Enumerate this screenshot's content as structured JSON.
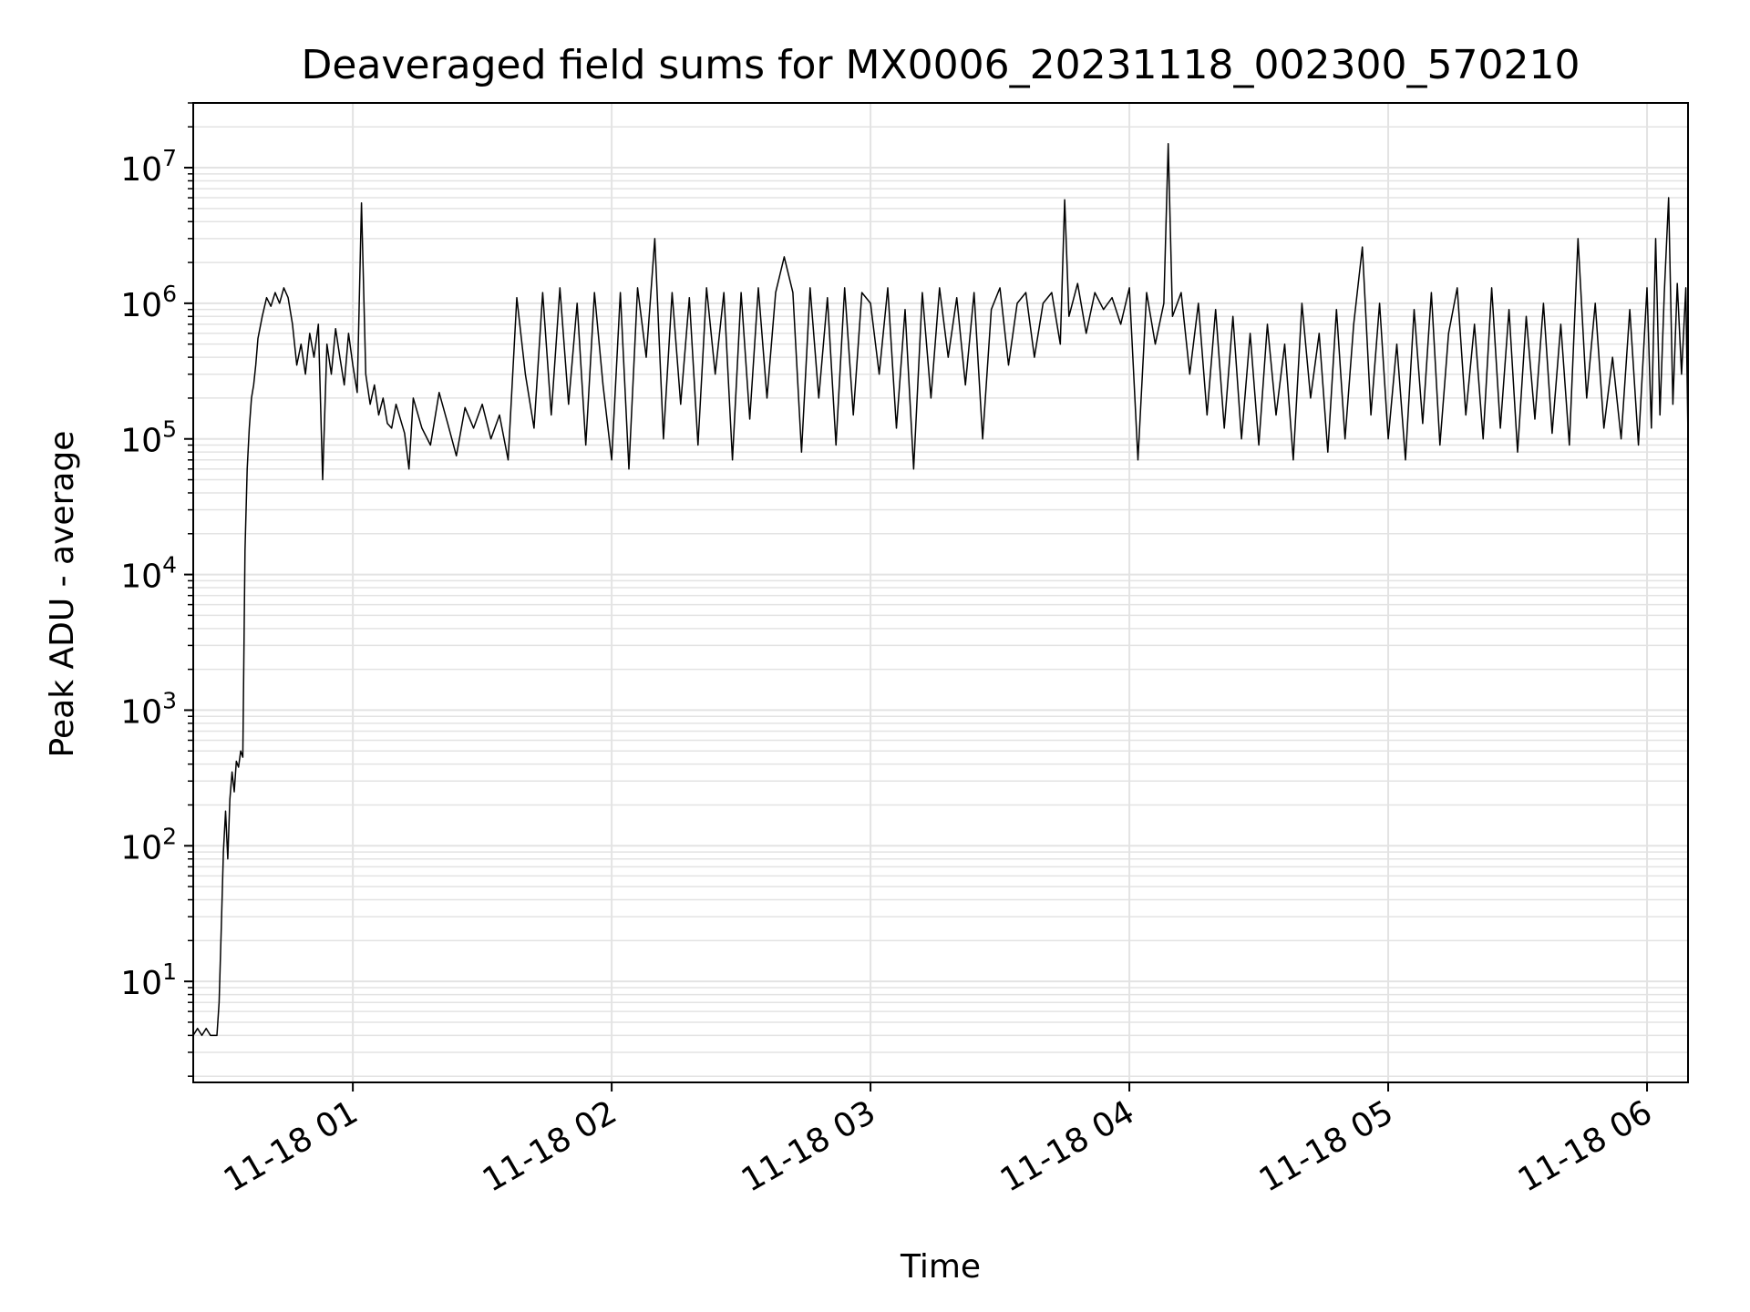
{
  "chart_data": {
    "type": "line",
    "title": "Deaveraged field sums for MX0006_20231118_002300_570210",
    "xlabel": "Time",
    "ylabel": "Peak ADU - average",
    "y_scale": "log",
    "ylim": [
      1.8,
      30000000
    ],
    "xlim": [
      "2023-11-18 00:23:00",
      "2023-11-18 06:09:30"
    ],
    "grid": true,
    "line_color": "#000000",
    "grid_color": "#e3e3e3",
    "x_ticks": [
      "11-18 01",
      "11-18 02",
      "11-18 03",
      "11-18 04",
      "11-18 05",
      "11-18 06"
    ],
    "y_ticks": [
      {
        "base": "10",
        "exp": "1",
        "value": 10
      },
      {
        "base": "10",
        "exp": "2",
        "value": 100
      },
      {
        "base": "10",
        "exp": "3",
        "value": 1000
      },
      {
        "base": "10",
        "exp": "4",
        "value": 10000
      },
      {
        "base": "10",
        "exp": "5",
        "value": 100000
      },
      {
        "base": "10",
        "exp": "6",
        "value": 1000000
      },
      {
        "base": "10",
        "exp": "7",
        "value": 10000000
      }
    ],
    "series": [
      {
        "points": [
          [
            "2023-11-18 00:23:00",
            4
          ],
          [
            "2023-11-18 00:24:00",
            4.5
          ],
          [
            "2023-11-18 00:25:00",
            4
          ],
          [
            "2023-11-18 00:26:00",
            4.5
          ],
          [
            "2023-11-18 00:27:00",
            4
          ],
          [
            "2023-11-18 00:28:30",
            4
          ],
          [
            "2023-11-18 00:29:00",
            7
          ],
          [
            "2023-11-18 00:29:30",
            25
          ],
          [
            "2023-11-18 00:30:00",
            90
          ],
          [
            "2023-11-18 00:30:30",
            180
          ],
          [
            "2023-11-18 00:31:00",
            80
          ],
          [
            "2023-11-18 00:31:30",
            220
          ],
          [
            "2023-11-18 00:32:00",
            350
          ],
          [
            "2023-11-18 00:32:30",
            250
          ],
          [
            "2023-11-18 00:33:00",
            420
          ],
          [
            "2023-11-18 00:33:30",
            380
          ],
          [
            "2023-11-18 00:34:00",
            500
          ],
          [
            "2023-11-18 00:34:30",
            450
          ],
          [
            "2023-11-18 00:35:00",
            15000
          ],
          [
            "2023-11-18 00:35:30",
            60000
          ],
          [
            "2023-11-18 00:36:00",
            120000
          ],
          [
            "2023-11-18 00:36:30",
            200000
          ],
          [
            "2023-11-18 00:37:00",
            250000
          ],
          [
            "2023-11-18 00:37:30",
            350000
          ],
          [
            "2023-11-18 00:38:00",
            550000
          ],
          [
            "2023-11-18 00:39:00",
            800000
          ],
          [
            "2023-11-18 00:40:00",
            1100000
          ],
          [
            "2023-11-18 00:41:00",
            950000
          ],
          [
            "2023-11-18 00:42:00",
            1200000
          ],
          [
            "2023-11-18 00:43:00",
            1000000
          ],
          [
            "2023-11-18 00:44:00",
            1300000
          ],
          [
            "2023-11-18 00:45:00",
            1100000
          ],
          [
            "2023-11-18 00:46:00",
            700000
          ],
          [
            "2023-11-18 00:47:00",
            350000
          ],
          [
            "2023-11-18 00:48:00",
            500000
          ],
          [
            "2023-11-18 00:49:00",
            300000
          ],
          [
            "2023-11-18 00:50:00",
            600000
          ],
          [
            "2023-11-18 00:51:00",
            400000
          ],
          [
            "2023-11-18 00:52:00",
            700000
          ],
          [
            "2023-11-18 00:53:00",
            50000
          ],
          [
            "2023-11-18 00:54:00",
            500000
          ],
          [
            "2023-11-18 00:55:00",
            300000
          ],
          [
            "2023-11-18 00:56:00",
            650000
          ],
          [
            "2023-11-18 00:57:00",
            400000
          ],
          [
            "2023-11-18 00:58:00",
            250000
          ],
          [
            "2023-11-18 00:59:00",
            600000
          ],
          [
            "2023-11-18 01:00:00",
            350000
          ],
          [
            "2023-11-18 01:01:00",
            220000
          ],
          [
            "2023-11-18 01:02:00",
            5500000
          ],
          [
            "2023-11-18 01:03:00",
            300000
          ],
          [
            "2023-11-18 01:04:00",
            180000
          ],
          [
            "2023-11-18 01:05:00",
            250000
          ],
          [
            "2023-11-18 01:06:00",
            150000
          ],
          [
            "2023-11-18 01:07:00",
            200000
          ],
          [
            "2023-11-18 01:08:00",
            130000
          ],
          [
            "2023-11-18 01:09:00",
            120000
          ],
          [
            "2023-11-18 01:10:00",
            180000
          ],
          [
            "2023-11-18 01:12:00",
            110000
          ],
          [
            "2023-11-18 01:13:00",
            60000
          ],
          [
            "2023-11-18 01:14:00",
            200000
          ],
          [
            "2023-11-18 01:16:00",
            120000
          ],
          [
            "2023-11-18 01:18:00",
            90000
          ],
          [
            "2023-11-18 01:20:00",
            220000
          ],
          [
            "2023-11-18 01:22:00",
            130000
          ],
          [
            "2023-11-18 01:24:00",
            75000
          ],
          [
            "2023-11-18 01:26:00",
            170000
          ],
          [
            "2023-11-18 01:28:00",
            120000
          ],
          [
            "2023-11-18 01:30:00",
            180000
          ],
          [
            "2023-11-18 01:32:00",
            100000
          ],
          [
            "2023-11-18 01:34:00",
            150000
          ],
          [
            "2023-11-18 01:36:00",
            70000
          ],
          [
            "2023-11-18 01:38:00",
            1100000
          ],
          [
            "2023-11-18 01:40:00",
            300000
          ],
          [
            "2023-11-18 01:42:00",
            120000
          ],
          [
            "2023-11-18 01:44:00",
            1200000
          ],
          [
            "2023-11-18 01:46:00",
            150000
          ],
          [
            "2023-11-18 01:48:00",
            1300000
          ],
          [
            "2023-11-18 01:50:00",
            180000
          ],
          [
            "2023-11-18 01:52:00",
            1000000
          ],
          [
            "2023-11-18 01:54:00",
            90000
          ],
          [
            "2023-11-18 01:56:00",
            1200000
          ],
          [
            "2023-11-18 01:58:00",
            250000
          ],
          [
            "2023-11-18 02:00:00",
            70000
          ],
          [
            "2023-11-18 02:02:00",
            1200000
          ],
          [
            "2023-11-18 02:04:00",
            60000
          ],
          [
            "2023-11-18 02:06:00",
            1300000
          ],
          [
            "2023-11-18 02:08:00",
            400000
          ],
          [
            "2023-11-18 02:10:00",
            3000000
          ],
          [
            "2023-11-18 02:12:00",
            100000
          ],
          [
            "2023-11-18 02:14:00",
            1200000
          ],
          [
            "2023-11-18 02:16:00",
            180000
          ],
          [
            "2023-11-18 02:18:00",
            1100000
          ],
          [
            "2023-11-18 02:20:00",
            90000
          ],
          [
            "2023-11-18 02:22:00",
            1300000
          ],
          [
            "2023-11-18 02:24:00",
            300000
          ],
          [
            "2023-11-18 02:26:00",
            1200000
          ],
          [
            "2023-11-18 02:28:00",
            70000
          ],
          [
            "2023-11-18 02:30:00",
            1200000
          ],
          [
            "2023-11-18 02:32:00",
            140000
          ],
          [
            "2023-11-18 02:34:00",
            1300000
          ],
          [
            "2023-11-18 02:36:00",
            200000
          ],
          [
            "2023-11-18 02:38:00",
            1200000
          ],
          [
            "2023-11-18 02:40:00",
            2200000
          ],
          [
            "2023-11-18 02:42:00",
            1200000
          ],
          [
            "2023-11-18 02:44:00",
            80000
          ],
          [
            "2023-11-18 02:46:00",
            1300000
          ],
          [
            "2023-11-18 02:48:00",
            200000
          ],
          [
            "2023-11-18 02:50:00",
            1100000
          ],
          [
            "2023-11-18 02:52:00",
            90000
          ],
          [
            "2023-11-18 02:54:00",
            1300000
          ],
          [
            "2023-11-18 02:56:00",
            150000
          ],
          [
            "2023-11-18 02:58:00",
            1200000
          ],
          [
            "2023-11-18 03:00:00",
            1000000
          ],
          [
            "2023-11-18 03:02:00",
            300000
          ],
          [
            "2023-11-18 03:04:00",
            1300000
          ],
          [
            "2023-11-18 03:06:00",
            120000
          ],
          [
            "2023-11-18 03:08:00",
            900000
          ],
          [
            "2023-11-18 03:10:00",
            60000
          ],
          [
            "2023-11-18 03:12:00",
            1200000
          ],
          [
            "2023-11-18 03:14:00",
            200000
          ],
          [
            "2023-11-18 03:16:00",
            1300000
          ],
          [
            "2023-11-18 03:18:00",
            400000
          ],
          [
            "2023-11-18 03:20:00",
            1100000
          ],
          [
            "2023-11-18 03:22:00",
            250000
          ],
          [
            "2023-11-18 03:24:00",
            1200000
          ],
          [
            "2023-11-18 03:26:00",
            100000
          ],
          [
            "2023-11-18 03:28:00",
            900000
          ],
          [
            "2023-11-18 03:30:00",
            1300000
          ],
          [
            "2023-11-18 03:32:00",
            350000
          ],
          [
            "2023-11-18 03:34:00",
            1000000
          ],
          [
            "2023-11-18 03:36:00",
            1200000
          ],
          [
            "2023-11-18 03:38:00",
            400000
          ],
          [
            "2023-11-18 03:40:00",
            1000000
          ],
          [
            "2023-11-18 03:42:00",
            1200000
          ],
          [
            "2023-11-18 03:44:00",
            500000
          ],
          [
            "2023-11-18 03:45:00",
            5800000
          ],
          [
            "2023-11-18 03:46:00",
            800000
          ],
          [
            "2023-11-18 03:48:00",
            1400000
          ],
          [
            "2023-11-18 03:50:00",
            600000
          ],
          [
            "2023-11-18 03:52:00",
            1200000
          ],
          [
            "2023-11-18 03:54:00",
            900000
          ],
          [
            "2023-11-18 03:56:00",
            1100000
          ],
          [
            "2023-11-18 03:58:00",
            700000
          ],
          [
            "2023-11-18 04:00:00",
            1300000
          ],
          [
            "2023-11-18 04:02:00",
            70000
          ],
          [
            "2023-11-18 04:04:00",
            1200000
          ],
          [
            "2023-11-18 04:06:00",
            500000
          ],
          [
            "2023-11-18 04:08:00",
            1000000
          ],
          [
            "2023-11-18 04:09:00",
            15000000
          ],
          [
            "2023-11-18 04:10:00",
            800000
          ],
          [
            "2023-11-18 04:12:00",
            1200000
          ],
          [
            "2023-11-18 04:14:00",
            300000
          ],
          [
            "2023-11-18 04:16:00",
            1000000
          ],
          [
            "2023-11-18 04:18:00",
            150000
          ],
          [
            "2023-11-18 04:20:00",
            900000
          ],
          [
            "2023-11-18 04:22:00",
            120000
          ],
          [
            "2023-11-18 04:24:00",
            800000
          ],
          [
            "2023-11-18 04:26:00",
            100000
          ],
          [
            "2023-11-18 04:28:00",
            600000
          ],
          [
            "2023-11-18 04:30:00",
            90000
          ],
          [
            "2023-11-18 04:32:00",
            700000
          ],
          [
            "2023-11-18 04:34:00",
            150000
          ],
          [
            "2023-11-18 04:36:00",
            500000
          ],
          [
            "2023-11-18 04:38:00",
            70000
          ],
          [
            "2023-11-18 04:40:00",
            1000000
          ],
          [
            "2023-11-18 04:42:00",
            200000
          ],
          [
            "2023-11-18 04:44:00",
            600000
          ],
          [
            "2023-11-18 04:46:00",
            80000
          ],
          [
            "2023-11-18 04:48:00",
            900000
          ],
          [
            "2023-11-18 04:50:00",
            100000
          ],
          [
            "2023-11-18 04:52:00",
            700000
          ],
          [
            "2023-11-18 04:54:00",
            2600000
          ],
          [
            "2023-11-18 04:56:00",
            150000
          ],
          [
            "2023-11-18 04:58:00",
            1000000
          ],
          [
            "2023-11-18 05:00:00",
            100000
          ],
          [
            "2023-11-18 05:02:00",
            500000
          ],
          [
            "2023-11-18 05:04:00",
            70000
          ],
          [
            "2023-11-18 05:06:00",
            900000
          ],
          [
            "2023-11-18 05:08:00",
            130000
          ],
          [
            "2023-11-18 05:10:00",
            1200000
          ],
          [
            "2023-11-18 05:12:00",
            90000
          ],
          [
            "2023-11-18 05:14:00",
            600000
          ],
          [
            "2023-11-18 05:16:00",
            1300000
          ],
          [
            "2023-11-18 05:18:00",
            150000
          ],
          [
            "2023-11-18 05:20:00",
            700000
          ],
          [
            "2023-11-18 05:22:00",
            100000
          ],
          [
            "2023-11-18 05:24:00",
            1300000
          ],
          [
            "2023-11-18 05:26:00",
            120000
          ],
          [
            "2023-11-18 05:28:00",
            900000
          ],
          [
            "2023-11-18 05:30:00",
            80000
          ],
          [
            "2023-11-18 05:32:00",
            800000
          ],
          [
            "2023-11-18 05:34:00",
            140000
          ],
          [
            "2023-11-18 05:36:00",
            1000000
          ],
          [
            "2023-11-18 05:38:00",
            110000
          ],
          [
            "2023-11-18 05:40:00",
            700000
          ],
          [
            "2023-11-18 05:42:00",
            90000
          ],
          [
            "2023-11-18 05:44:00",
            3000000
          ],
          [
            "2023-11-18 05:46:00",
            200000
          ],
          [
            "2023-11-18 05:48:00",
            1000000
          ],
          [
            "2023-11-18 05:50:00",
            120000
          ],
          [
            "2023-11-18 05:52:00",
            400000
          ],
          [
            "2023-11-18 05:54:00",
            100000
          ],
          [
            "2023-11-18 05:56:00",
            900000
          ],
          [
            "2023-11-18 05:58:00",
            90000
          ],
          [
            "2023-11-18 06:00:00",
            1300000
          ],
          [
            "2023-11-18 06:01:00",
            120000
          ],
          [
            "2023-11-18 06:02:00",
            3000000
          ],
          [
            "2023-11-18 06:03:00",
            150000
          ],
          [
            "2023-11-18 06:04:00",
            1200000
          ],
          [
            "2023-11-18 06:05:00",
            6000000
          ],
          [
            "2023-11-18 06:06:00",
            180000
          ],
          [
            "2023-11-18 06:07:00",
            1400000
          ],
          [
            "2023-11-18 06:08:00",
            300000
          ],
          [
            "2023-11-18 06:09:00",
            1300000
          ],
          [
            "2023-11-18 06:09:30",
            100000
          ]
        ]
      }
    ]
  }
}
